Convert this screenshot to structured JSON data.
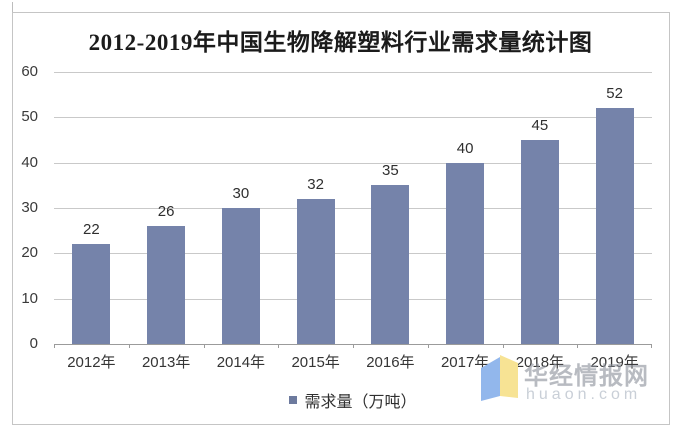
{
  "chart_data": {
    "type": "bar",
    "title": "2012-2019年中国生物降解塑料行业需求量统计图",
    "categories": [
      "2012年",
      "2013年",
      "2014年",
      "2015年",
      "2016年",
      "2017年",
      "2018年",
      "2019年"
    ],
    "values": [
      22,
      26,
      30,
      32,
      35,
      40,
      45,
      52
    ],
    "series_name": "需求量（万吨）",
    "xlabel": "",
    "ylabel": "",
    "ylim": [
      0,
      60
    ],
    "y_ticks": [
      0,
      10,
      20,
      30,
      40,
      50,
      60
    ],
    "grid": true,
    "legend_position": "bottom",
    "bar_color": "#7583aa"
  },
  "legend": {
    "label": "需求量（万吨）"
  },
  "watermark": {
    "name": "华经情报网",
    "domain": "huaon.com",
    "logo_blue": "#92b7ec",
    "logo_yellow": "#f7e394"
  },
  "colors": {
    "gridline": "#c9c9c9",
    "axis": "#9b9b9b",
    "frame_border": "#c5c5c5",
    "title_text": "#1b1b1b",
    "label_text": "#353535"
  }
}
